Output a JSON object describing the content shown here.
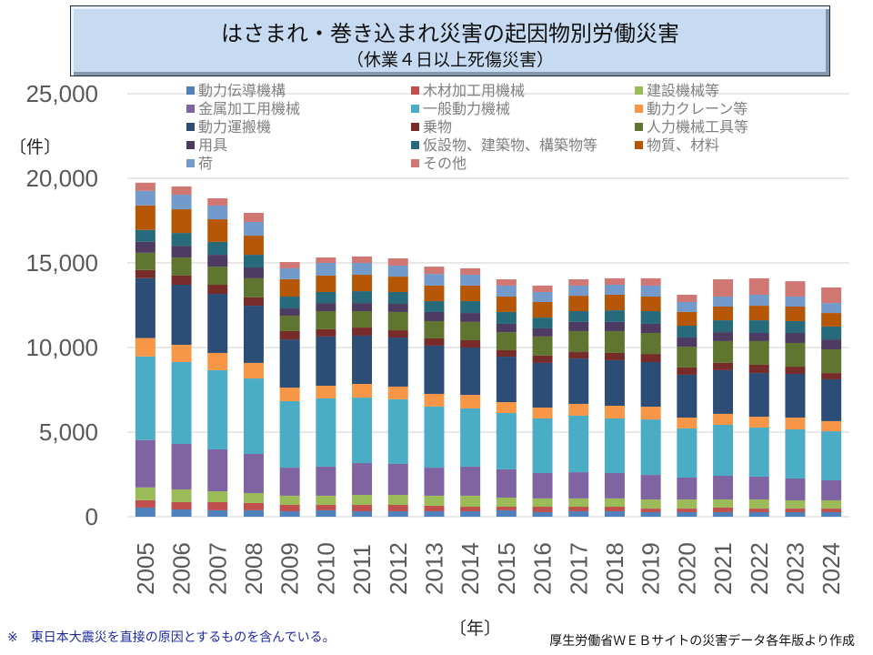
{
  "title": {
    "main": "はさまれ・巻き込まれ災害の起因物別労働災害",
    "sub": "（休業４日以上死傷災害）"
  },
  "y_unit": "〔件〕",
  "x_unit": "〔年〕",
  "footnote": "※　東日本大震災を直接の原因とするものを含んでいる。",
  "source": "厚生労働省ＷＥＢサイトの災害データ各年版より作成",
  "chart_data": {
    "type": "bar",
    "stacked": true,
    "title": "はさまれ・巻き込まれ災害の起因物別労働災害（休業４日以上死傷災害）",
    "xlabel": "〔年〕",
    "ylabel": "〔件〕",
    "ylim": [
      0,
      25000
    ],
    "yticks": [
      0,
      5000,
      10000,
      15000,
      20000,
      25000
    ],
    "ytick_labels": [
      "0",
      "5,000",
      "10,000",
      "15,000",
      "20,000",
      "25,000"
    ],
    "grid": true,
    "legend_position": "top",
    "categories": [
      "2005",
      "2006",
      "2007",
      "2008",
      "2009",
      "2010",
      "2011",
      "2012",
      "2013",
      "2014",
      "2015",
      "2016",
      "2017",
      "2018",
      "2019",
      "2020",
      "2021",
      "2022",
      "2023",
      "2024"
    ],
    "series": [
      {
        "name": "動力伝導機構",
        "color": "#4f81bd",
        "values": [
          540,
          430,
          380,
          380,
          320,
          380,
          320,
          320,
          320,
          320,
          380,
          270,
          320,
          320,
          270,
          270,
          270,
          270,
          270,
          270
        ]
      },
      {
        "name": "木材加工用機械",
        "color": "#c0504d",
        "values": [
          440,
          430,
          480,
          430,
          380,
          320,
          380,
          380,
          330,
          270,
          210,
          320,
          270,
          270,
          210,
          210,
          270,
          210,
          210,
          210
        ]
      },
      {
        "name": "建設機械等",
        "color": "#9bbb59",
        "values": [
          750,
          750,
          640,
          590,
          540,
          540,
          590,
          590,
          590,
          650,
          540,
          490,
          490,
          490,
          540,
          540,
          480,
          540,
          490,
          490
        ]
      },
      {
        "name": "金属加工用機械",
        "color": "#8064a2",
        "values": [
          2800,
          2690,
          2480,
          2310,
          1660,
          1720,
          1880,
          1830,
          1660,
          1720,
          1670,
          1500,
          1550,
          1500,
          1450,
          1290,
          1400,
          1350,
          1290,
          1180
        ]
      },
      {
        "name": "一般動力機械",
        "color": "#4bacc6",
        "values": [
          4940,
          4840,
          4680,
          4460,
          3930,
          4030,
          3870,
          3820,
          3610,
          3440,
          3330,
          3230,
          3340,
          3230,
          3280,
          2910,
          3010,
          2900,
          2900,
          2900
        ]
      },
      {
        "name": "動力クレーン等",
        "color": "#f79646",
        "values": [
          1090,
          1020,
          1020,
          920,
          800,
          750,
          810,
          750,
          750,
          800,
          640,
          640,
          700,
          750,
          750,
          640,
          650,
          640,
          700,
          600
        ]
      },
      {
        "name": "動力運搬機",
        "color": "#2c4d75",
        "values": [
          3540,
          3550,
          3490,
          3380,
          2850,
          2910,
          2850,
          2900,
          2850,
          2800,
          2690,
          2640,
          2680,
          2690,
          2640,
          2530,
          2580,
          2580,
          2580,
          2470
        ]
      },
      {
        "name": "乗物",
        "color": "#772c2a",
        "values": [
          480,
          540,
          540,
          490,
          490,
          430,
          480,
          430,
          430,
          430,
          380,
          430,
          380,
          430,
          480,
          430,
          430,
          490,
          430,
          370
        ]
      },
      {
        "name": "人力機械工具等",
        "color": "#5f7530",
        "values": [
          1020,
          1070,
          1070,
          1130,
          910,
          1070,
          970,
          1080,
          1020,
          1080,
          1070,
          1130,
          1240,
          1290,
          1240,
          1230,
          1290,
          1400,
          1400,
          1400
        ]
      },
      {
        "name": "用具",
        "color": "#4d3b62",
        "values": [
          650,
          680,
          700,
          640,
          430,
          480,
          480,
          480,
          540,
          530,
          490,
          480,
          540,
          540,
          540,
          540,
          530,
          480,
          590,
          590
        ]
      },
      {
        "name": "仮設物、建築物、構築物等",
        "color": "#276a7c",
        "values": [
          700,
          770,
          760,
          750,
          700,
          650,
          700,
          700,
          640,
          700,
          700,
          640,
          640,
          690,
          750,
          700,
          700,
          750,
          700,
          760
        ]
      },
      {
        "name": "物質、材料",
        "color": "#b65708",
        "values": [
          1450,
          1400,
          1340,
          1130,
          1030,
          970,
          970,
          910,
          920,
          920,
          910,
          920,
          910,
          920,
          860,
          810,
          810,
          860,
          860,
          800
        ]
      },
      {
        "name": "荷",
        "color": "#729aca",
        "values": [
          860,
          860,
          810,
          810,
          640,
          750,
          700,
          650,
          690,
          640,
          650,
          590,
          600,
          590,
          650,
          590,
          590,
          650,
          590,
          590
        ]
      },
      {
        "name": "その他",
        "color": "#d07673",
        "values": [
          480,
          490,
          430,
          540,
          370,
          320,
          380,
          430,
          430,
          380,
          370,
          380,
          370,
          380,
          430,
          430,
          1020,
          970,
          910,
          920
        ]
      }
    ]
  }
}
